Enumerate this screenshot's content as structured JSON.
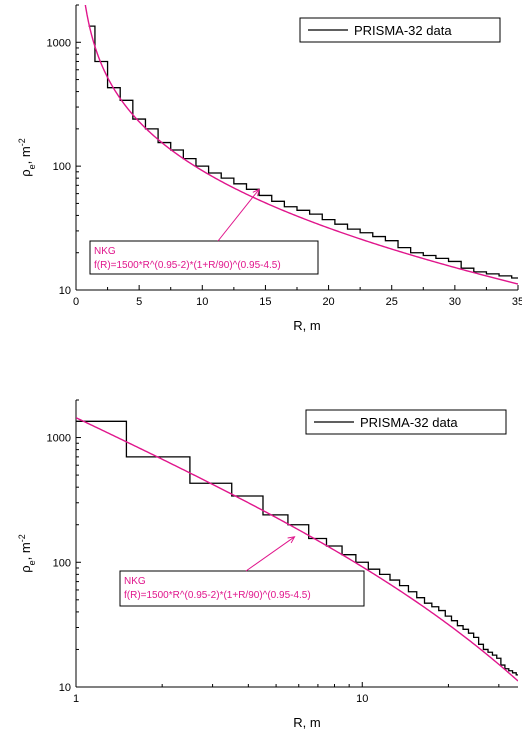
{
  "chart_data": [
    {
      "type": "line",
      "xscale": "linear",
      "yscale": "log",
      "xlim": [
        0,
        35
      ],
      "ylim": [
        10,
        2000
      ],
      "xticks": [
        "0",
        "5",
        "10",
        "15",
        "20",
        "25",
        "30",
        "35"
      ],
      "yticks": [
        "10",
        "100",
        "1000"
      ],
      "xlabel": "R, m",
      "ylabel": "ρe, m-2",
      "ylabel_parts": {
        "rho": "ρ",
        "sub": "e",
        "unit": ", m",
        "sup": "-2"
      },
      "legend": {
        "placement": "top-right",
        "label": "PRISMA-32 data"
      },
      "annotation": {
        "title": "NKG",
        "formula": "f(R)=1500*R^(0.95-2)*(1+R/90)^(0.95-4.5)",
        "arrow_to": [
          14.5,
          65
        ]
      },
      "series": [
        {
          "name": "PRISMA-32 data",
          "style": "step",
          "color": "#000000",
          "edges": [
            1,
            1.5,
            2.5,
            3.5,
            4.5,
            5.5,
            6.5,
            7.5,
            8.5,
            9.5,
            10.5,
            11.5,
            12.5,
            13.5,
            14.5,
            15.5,
            16.5,
            17.5,
            18.5,
            19.5,
            20.5,
            21.5,
            22.5,
            23.5,
            24.5,
            25.5,
            26.5,
            27.5,
            28.5,
            29.5,
            30.5,
            31.5,
            32.5,
            33.5,
            34.5,
            35
          ],
          "values": [
            1350,
            700,
            430,
            340,
            240,
            200,
            155,
            135,
            115,
            100,
            88,
            80,
            72,
            65,
            58,
            52,
            47,
            44,
            41,
            37,
            34,
            31,
            29,
            27,
            25,
            22,
            20,
            19,
            18,
            17,
            15,
            14,
            13.5,
            13,
            12.5
          ]
        },
        {
          "name": "NKG",
          "style": "curve",
          "color": "#e0168c",
          "function": "1500*R^(0.95-2)*(1+R/90)^(0.95-4.5)",
          "x_range": [
            0.3,
            35
          ]
        }
      ]
    },
    {
      "type": "line",
      "xscale": "log",
      "yscale": "log",
      "xlim": [
        1,
        35
      ],
      "ylim": [
        10,
        2000
      ],
      "xticks": [
        "1",
        "10"
      ],
      "yticks": [
        "10",
        "100",
        "1000"
      ],
      "xlabel": "R, m",
      "ylabel": "ρe, m-2",
      "ylabel_parts": {
        "rho": "ρ",
        "sub": "e",
        "unit": ", m",
        "sup": "-2"
      },
      "legend": {
        "placement": "top-right",
        "label": "PRISMA-32 data"
      },
      "annotation": {
        "title": "NKG",
        "formula": "f(R)=1500*R^(0.95-2)*(1+R/90)^(0.95-4.5)",
        "arrow_to": [
          5.8,
          160
        ]
      },
      "series": [
        {
          "name": "PRISMA-32 data",
          "style": "step",
          "color": "#000000",
          "edges": [
            1,
            1.5,
            2.5,
            3.5,
            4.5,
            5.5,
            6.5,
            7.5,
            8.5,
            9.5,
            10.5,
            11.5,
            12.5,
            13.5,
            14.5,
            15.5,
            16.5,
            17.5,
            18.5,
            19.5,
            20.5,
            21.5,
            22.5,
            23.5,
            24.5,
            25.5,
            26.5,
            27.5,
            28.5,
            29.5,
            30.5,
            31.5,
            32.5,
            33.5,
            34.5,
            35
          ],
          "values": [
            1350,
            700,
            430,
            340,
            240,
            200,
            155,
            135,
            115,
            100,
            88,
            80,
            72,
            65,
            58,
            52,
            47,
            44,
            41,
            37,
            34,
            31,
            29,
            27,
            25,
            22,
            20,
            19,
            18,
            17,
            15,
            14,
            13.5,
            13,
            12.5
          ]
        },
        {
          "name": "NKG",
          "style": "curve",
          "color": "#e0168c",
          "function": "1500*R^(0.95-2)*(1+R/90)^(0.95-4.5)",
          "x_range": [
            1,
            35
          ]
        }
      ]
    }
  ]
}
